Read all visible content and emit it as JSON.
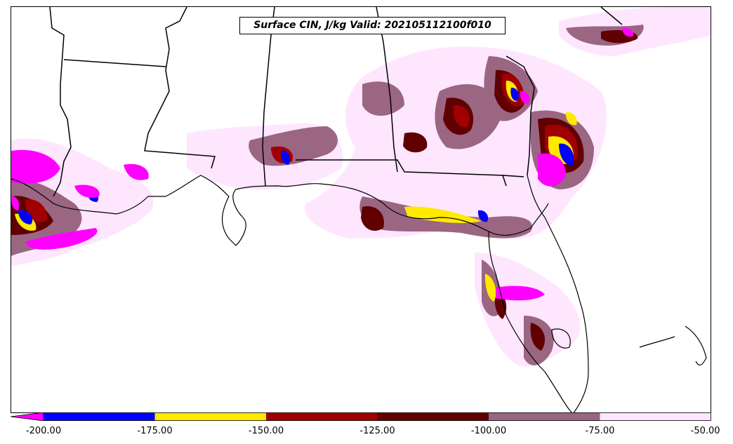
{
  "title": "Surface CIN, J/kg Valid: 202105112100f010",
  "colorbar": {
    "bins": [
      {
        "from": -200,
        "to": -175,
        "color": "#0000ff"
      },
      {
        "from": -175,
        "to": -150,
        "color": "#ffea00"
      },
      {
        "from": -150,
        "to": -125,
        "color": "#a00000"
      },
      {
        "from": -125,
        "to": -100,
        "color": "#600000"
      },
      {
        "from": -100,
        "to": -75,
        "color": "#9b6682"
      },
      {
        "from": -75,
        "to": -50,
        "color": "#ffe6ff"
      }
    ],
    "extend_low_color": "#ff00ff",
    "tick_labels": [
      "-200.00",
      "-175.00",
      "-150.00",
      "-125.00",
      "-100.00",
      "-75.00",
      "-50.00"
    ],
    "tick_values": [
      -200,
      -175,
      -150,
      -125,
      -100,
      -75,
      -50
    ]
  },
  "legend_colors": {
    "below_-200": "#ff00ff",
    "-200_to_-175": "#0000ff",
    "-175_to_-150": "#ffea00",
    "-150_to_-125": "#a00000",
    "-125_to_-100": "#600000",
    "-100_to_-75": "#9b6682",
    "-75_to_-50": "#ffe6ff"
  }
}
